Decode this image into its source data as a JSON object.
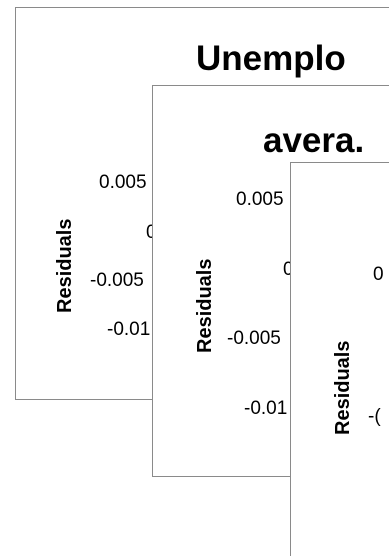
{
  "chart_data": [
    {
      "type": "line",
      "title": "Unemplo",
      "ylabel": "Residuals",
      "yticks": [
        "0.005",
        "0",
        "-0.005",
        "-0.01"
      ]
    },
    {
      "type": "line",
      "title": "avera.",
      "ylabel": "Residuals",
      "yticks": [
        "0.005",
        "0",
        "-0.005",
        "-0.01"
      ]
    },
    {
      "type": "line",
      "title": "",
      "ylabel": "Residuals",
      "yticks": [
        "0",
        "-("
      ]
    }
  ]
}
